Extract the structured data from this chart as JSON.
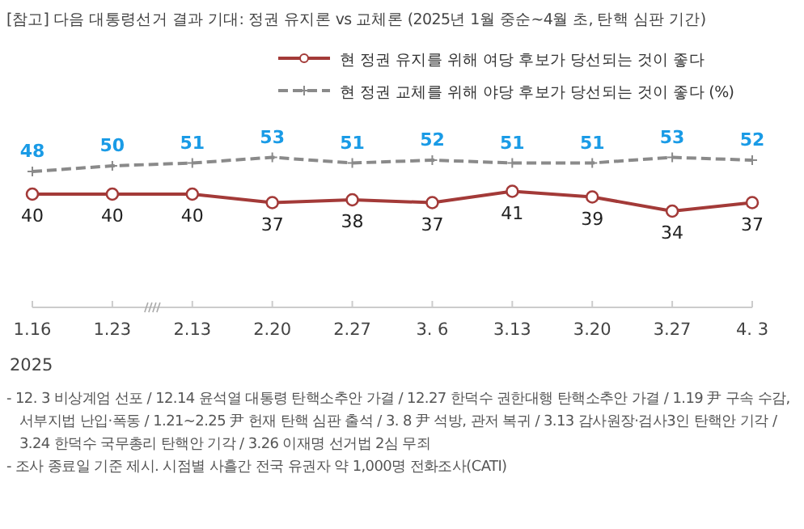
{
  "chart_data": {
    "type": "line",
    "title": "[참고] 다음 대통령선거 결과 기대: 정권 유지론 vs 교체론 (2025년 1월 중순~4월 초, 탄핵 심판 기간)",
    "categories": [
      "1.16",
      "1.23",
      "2.13",
      "2.20",
      "2.27",
      "3. 6",
      "3.13",
      "3.20",
      "3.27",
      "4. 3"
    ],
    "series": [
      {
        "name": "현 정권 유지를 위해 여당 후보가 당선되는 것이 좋다",
        "color": "#a33a38",
        "marker": "circle",
        "line_style": "solid",
        "values": [
          40,
          40,
          40,
          37,
          38,
          37,
          41,
          39,
          34,
          37
        ]
      },
      {
        "name": "현 정권 교체를 위해 야당 후보가 당선되는 것이 좋다 (%)",
        "color": "#8a8a8a",
        "marker": "cross",
        "line_style": "dashed",
        "values": [
          48,
          50,
          51,
          53,
          51,
          52,
          51,
          51,
          53,
          52
        ]
      }
    ],
    "data_labels": true,
    "legend": "top right",
    "annotations": [
      "2025",
      "- 12. 3 비상계엄 선포 / 12.14 윤석열 대통령 탄핵소추안 가결 / 12.27 한덕수 권한대행 탄핵소추안 가결 / 1.19 尹 구속 수감, 서부지법 난입·폭동 / 1.21~2.25 尹 헌재 탄핵 심판 출석 / 3. 8 尹 석방, 관저 복귀 / 3.13 감사원장·검사3인 탄핵안 기각 / 3.24 한덕수 국무총리 탄핵안 기각 / 3.26 이재명 선거법 2심 무죄",
      "- 조사 종료일 기준 제시. 시점별 사흘간 전국 유권자 약 1,000명 전화조사(CATI)"
    ]
  }
}
